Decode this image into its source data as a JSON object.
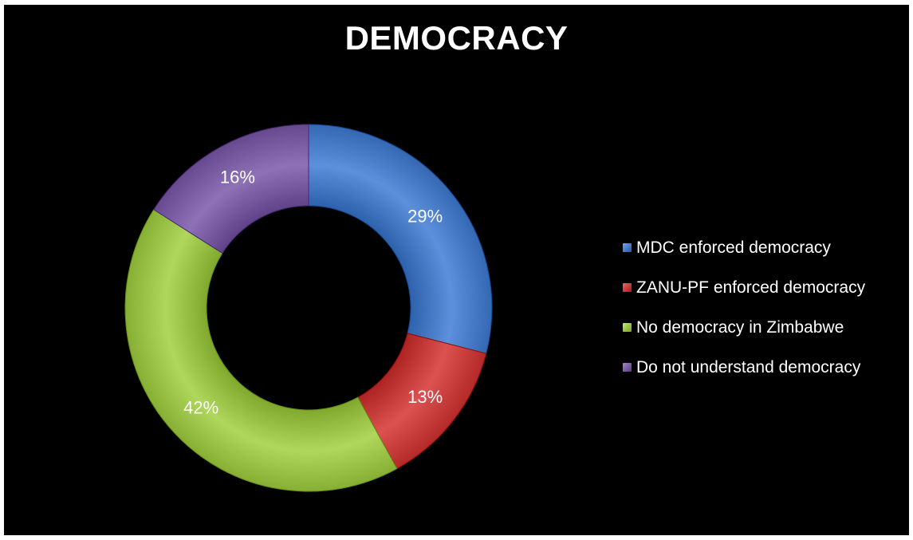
{
  "chart_data": {
    "type": "pie",
    "subtype": "donut",
    "title": "DEMOCRACY",
    "categories": [
      "MDC enforced democracy",
      "ZANU-PF enforced democracy",
      "No democracy in Zimbabwe",
      "Do not understand democracy"
    ],
    "values": [
      29,
      13,
      42,
      16
    ],
    "value_labels": [
      "29%",
      "13%",
      "42%",
      "16%"
    ],
    "colors": [
      "#4a7ec9",
      "#c9403f",
      "#9cc54a",
      "#7d5fa6"
    ],
    "legend_position": "right",
    "background": "#000000"
  }
}
